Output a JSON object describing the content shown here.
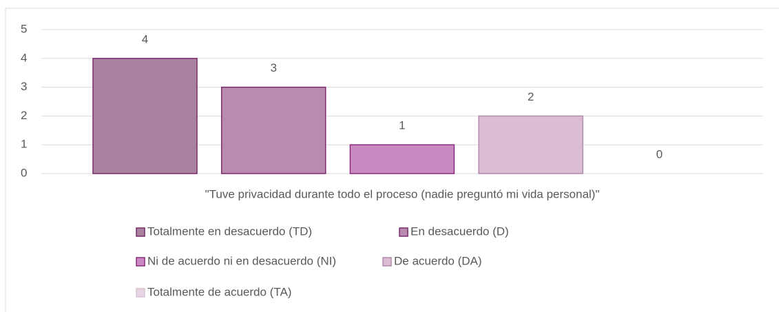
{
  "chart_data": {
    "type": "bar",
    "categories": [
      "\"Tuve privacidad durante todo el proceso (nadie preguntó mi vida personal)\""
    ],
    "series": [
      {
        "name": "Totalmente en desacuerdo (TD)",
        "color": "#a9829f",
        "values": [
          4
        ]
      },
      {
        "name": "En desacuerdo (D)",
        "color": "#b98bb1",
        "values": [
          3
        ]
      },
      {
        "name": "Ni de acuerdo ni en desacuerdo (NI)",
        "color": "#c98ac1",
        "values": [
          1
        ]
      },
      {
        "name": "De acuerdo (DA)",
        "color": "#dbbcd5",
        "values": [
          2
        ]
      },
      {
        "name": "Totalmente de acuerdo (TA)",
        "color": "#e8d5e3",
        "values": [
          0
        ]
      }
    ],
    "ylim": [
      0,
      5
    ],
    "yticks": [
      0,
      1,
      2,
      3,
      4,
      5
    ],
    "grid": true,
    "legend": "bottom"
  }
}
